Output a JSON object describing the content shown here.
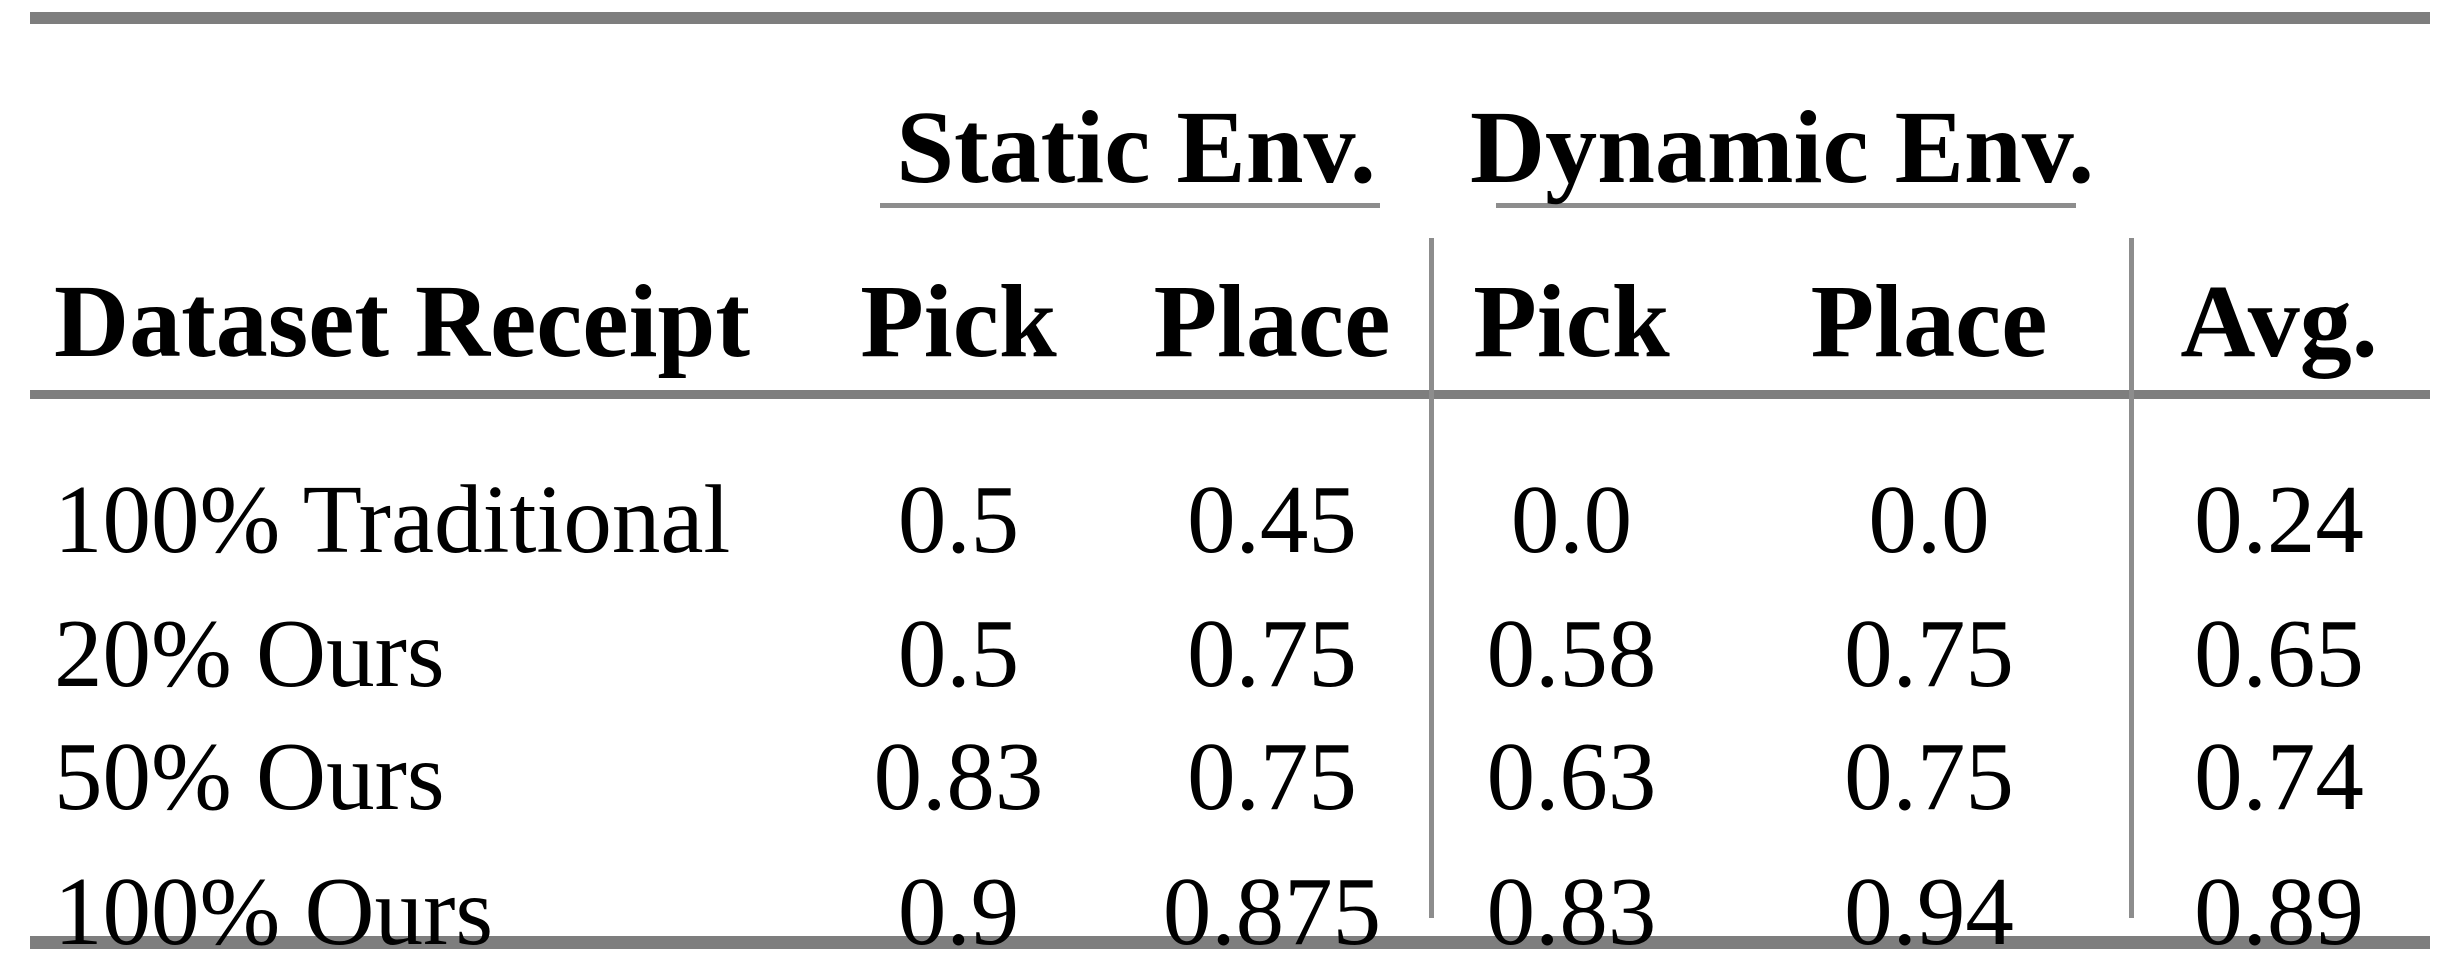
{
  "table": {
    "group_headers": {
      "static": "Static Env.",
      "dynamic": "Dynamic Env."
    },
    "column_headers": {
      "dataset": "Dataset Receipt",
      "static_pick": "Pick",
      "static_place": "Place",
      "dynamic_pick": "Pick",
      "dynamic_place": "Place",
      "avg": "Avg."
    },
    "rows": [
      {
        "label": "100% Traditional",
        "static_pick": "0.5",
        "static_place": "0.45",
        "dynamic_pick": "0.0",
        "dynamic_place": "0.0",
        "avg": "0.24"
      },
      {
        "label": "20% Ours",
        "static_pick": "0.5",
        "static_place": "0.75",
        "dynamic_pick": "0.58",
        "dynamic_place": "0.75",
        "avg": "0.65"
      },
      {
        "label": "50% Ours",
        "static_pick": "0.83",
        "static_place": "0.75",
        "dynamic_pick": "0.63",
        "dynamic_place": "0.75",
        "avg": "0.74"
      },
      {
        "label": "100% Ours",
        "static_pick": "0.9",
        "static_place": "0.875",
        "dynamic_pick": "0.83",
        "dynamic_place": "0.94",
        "avg": "0.89"
      }
    ],
    "colors": {
      "rule_heavy": "#7e7e7e",
      "rule_light": "#8d8d8d",
      "text": "#000000",
      "background": "#ffffff"
    }
  }
}
